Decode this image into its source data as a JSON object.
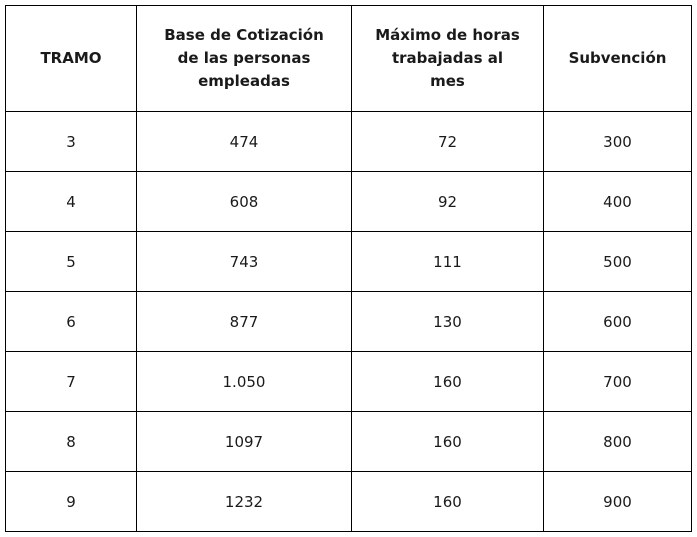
{
  "table": {
    "headers": {
      "tramo": [
        "TRAMO"
      ],
      "base": [
        "Base de Cotización",
        "de las personas",
        "empleadas"
      ],
      "horas": [
        "Máximo de horas",
        "trabajadas al",
        "mes"
      ],
      "subvencion": [
        "Subvención"
      ]
    },
    "rows": [
      {
        "tramo": "3",
        "base": "474",
        "horas": "72",
        "subvencion": "300"
      },
      {
        "tramo": "4",
        "base": "608",
        "horas": "92",
        "subvencion": "400"
      },
      {
        "tramo": "5",
        "base": "743",
        "horas": "111",
        "subvencion": "500"
      },
      {
        "tramo": "6",
        "base": "877",
        "horas": "130",
        "subvencion": "600"
      },
      {
        "tramo": "7",
        "base": "1.050",
        "horas": "160",
        "subvencion": "700"
      },
      {
        "tramo": "8",
        "base": "1097",
        "horas": "160",
        "subvencion": "800"
      },
      {
        "tramo": "9",
        "base": "1232",
        "horas": "160",
        "subvencion": "900"
      }
    ]
  }
}
